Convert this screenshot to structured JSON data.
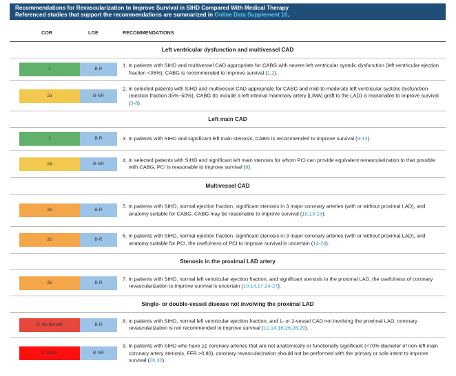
{
  "banner": {
    "title": "Recommendations for Revascularization to Improve Survival in SIHD Compared With Medical Therapy",
    "subtitle_prefix": "Referenced studies that support the recommendations are summarized in ",
    "subtitle_link": "Online Data Supplement 10",
    "subtitle_suffix": "."
  },
  "columns": {
    "cor": "COR",
    "loe": "LOE",
    "recommendations": "RECOMMENDATIONS"
  },
  "sections": [
    {
      "title": "Left ventricular dysfunction and multivessel CAD"
    },
    {
      "title": "Left main CAD"
    },
    {
      "title": "Multivessel CAD"
    },
    {
      "title": "Stenosis in the proximal LAD artery"
    },
    {
      "title": "Single- or double-vessel disease not involving the proximal LAD"
    }
  ],
  "rows": [
    {
      "cor": "1",
      "cor_color": "#62b16b",
      "loe": "B-R",
      "text": "1. In patients with SIHD and multivessel CAD appropriate for CABG with severe left ventricular systolic dysfunction (left ventricular ejection fraction <35%), CABG is recommended to improve survival (",
      "cite": "1,2",
      "end": ")."
    },
    {
      "cor": "2a",
      "cor_color": "#f2c84e",
      "loe": "B-NR",
      "text": "2. In selected patients with SIHD and multivessel CAD appropriate for CABG and mild-to-moderate left ventricular systolic dysfunction (ejection fraction 35%–50%), CABG (to include a left internal mammary artery [LIMA] graft to the LAD) is reasonable to improve survival (",
      "cite": "3-8",
      "end": ")."
    },
    {
      "cor": "1",
      "cor_color": "#62b16b",
      "loe": "B-R",
      "text": "3. In patients with SIHD and significant left main stenosis, CABG is recommended to improve survival (",
      "cite": "9-12",
      "end": ")."
    },
    {
      "cor": "2a",
      "cor_color": "#f2c84e",
      "loe": "B-NR",
      "text": "4. In selected patients with SIHD and significant left main stenosis for whom PCI can provide equivalent revascularization to that possible with CABG, PCI is reasonable to improve survival (",
      "cite": "9",
      "end": ")."
    },
    {
      "cor": "2b",
      "cor_color": "#f4a64a",
      "loe": "B-R",
      "text": "5. In patients with SIHD, normal ejection fraction, significant stenosis in 3 major coronary arteries (with or without proximal LAD), and anatomy suitable for CABG, CABG may be reasonable to improve survival (",
      "cite": "10,13-15",
      "end": ")."
    },
    {
      "cor": "2b",
      "cor_color": "#f4a64a",
      "loe": "B-R",
      "text": "6. In patients with SIHD, normal ejection fraction, significant stenosis in 3 major coronary arteries (with or without proximal LAD), and anatomy suitable for PCI, the usefulness of PCI to improve survival is uncertain (",
      "cite": "14-24",
      "end": ")."
    },
    {
      "cor": "2b",
      "cor_color": "#f4a64a",
      "loe": "B-R",
      "text": "7. In patients with SIHD, normal left ventricular ejection fraction, and significant stenosis in the proximal LAD, the usefulness of coronary revascularization to improve survival is uncertain (",
      "cite": "10,14,17,24-27",
      "end": ")."
    },
    {
      "cor": "3: No Benefit",
      "cor_color": "#e8473d",
      "loe": "B-R",
      "text": "8. In patients with SIHD, normal left ventricular ejection fraction, and 1- or 2-vessel CAD not involving the proximal LAD, coronary revascularization is not recommended to improve survival (",
      "cite": "10,14,16,26,28,29",
      "end": ")."
    },
    {
      "cor": "3: Harm",
      "cor_color": "#ff1010",
      "loe": "B-NR",
      "text": "9. In patients with SIHD who have ≥1 coronary arteries that are not anatomically or functionally significant (<70% diameter of non-left main coronary artery stenosis, FFR >0.80), coronary revascularization should not be performed with the primary or sole intent to improve survival (",
      "cite": "26,30",
      "end": ")."
    }
  ]
}
